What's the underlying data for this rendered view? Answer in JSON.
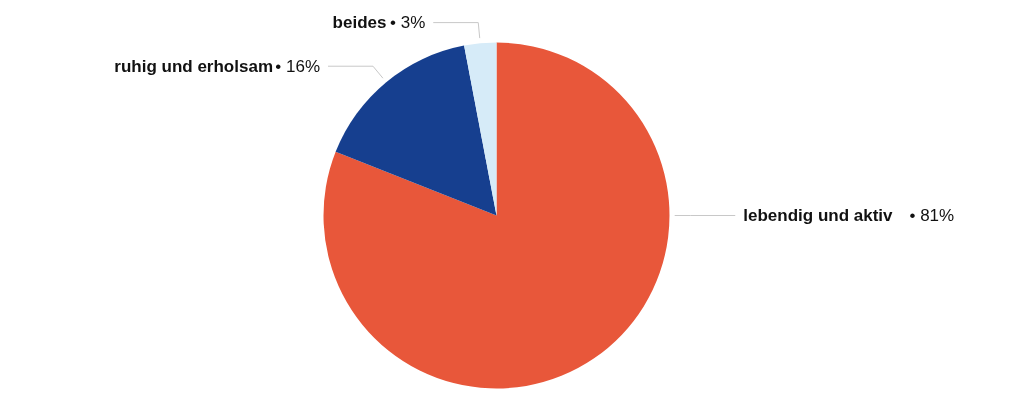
{
  "chart_data": {
    "type": "pie",
    "categories": [
      "lebendig und aktiv",
      "ruhig und erholsam",
      "beides"
    ],
    "values": [
      81,
      16,
      3
    ],
    "value_labels": [
      "• 81%",
      "• 16%",
      "• 3%"
    ],
    "colors": [
      "#e8573a",
      "#163f8f",
      "#d6ebf8"
    ]
  }
}
